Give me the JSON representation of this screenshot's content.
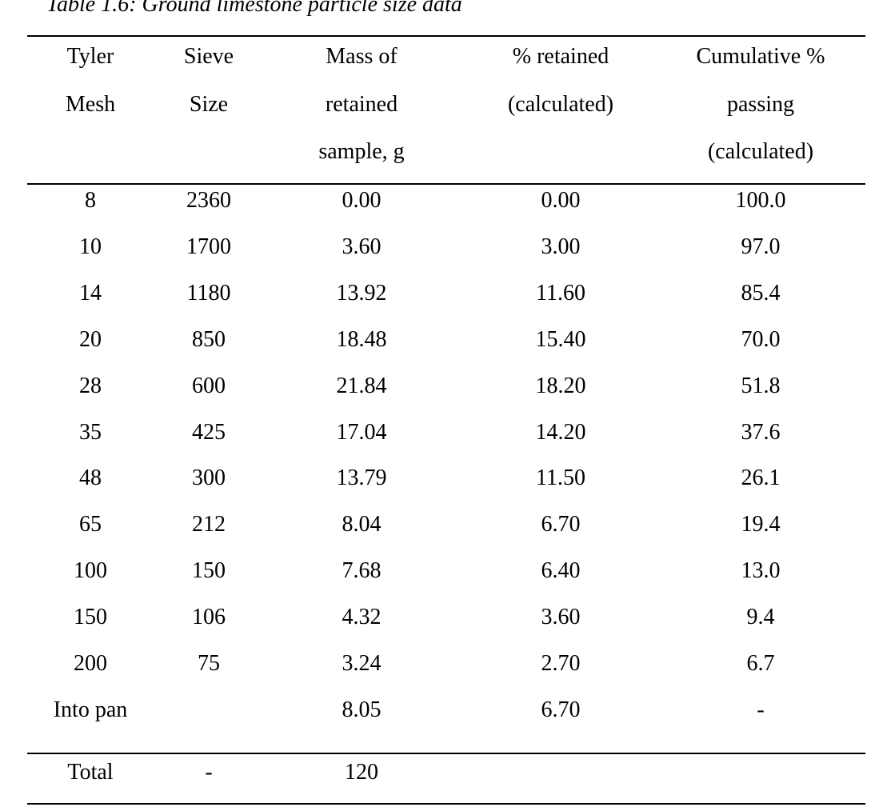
{
  "caption": "Table 1.6: Ground limestone particle size data",
  "headers": [
    [
      "Tyler",
      "Mesh",
      ""
    ],
    [
      "Sieve",
      "Size",
      ""
    ],
    [
      "Mass of",
      "retained",
      "sample, g"
    ],
    [
      "% retained",
      "(calculated)",
      ""
    ],
    [
      "Cumulative  %",
      "passing",
      "(calculated)"
    ]
  ],
  "rows": [
    [
      "8",
      "2360",
      "0.00",
      "0.00",
      "100.0"
    ],
    [
      "10",
      "1700",
      "3.60",
      "3.00",
      "97.0"
    ],
    [
      "14",
      "1180",
      "13.92",
      "11.60",
      "85.4"
    ],
    [
      "20",
      "850",
      "18.48",
      "15.40",
      "70.0"
    ],
    [
      "28",
      "600",
      "21.84",
      "18.20",
      "51.8"
    ],
    [
      "35",
      "425",
      "17.04",
      "14.20",
      "37.6"
    ],
    [
      "48",
      "300",
      "13.79",
      "11.50",
      "26.1"
    ],
    [
      "65",
      "212",
      "8.04",
      "6.70",
      "19.4"
    ],
    [
      "100",
      "150",
      "7.68",
      "6.40",
      "13.0"
    ],
    [
      "150",
      "106",
      "4.32",
      "3.60",
      "9.4"
    ],
    [
      "200",
      "75",
      "3.24",
      "2.70",
      "6.7"
    ],
    [
      "Into pan",
      "",
      "8.05",
      "6.70",
      "-"
    ]
  ],
  "total_row": [
    "Total",
    "-",
    "120",
    "",
    ""
  ]
}
